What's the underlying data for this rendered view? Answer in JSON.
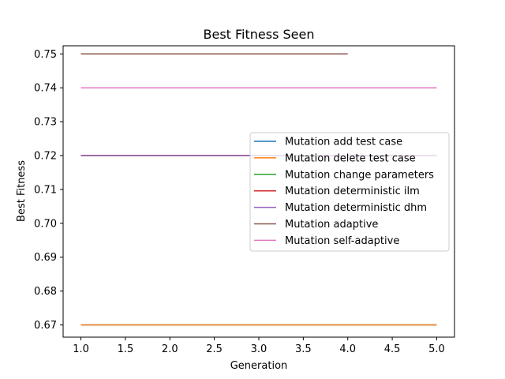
{
  "chart_data": {
    "type": "line",
    "title": "Best Fitness Seen",
    "xlabel": "Generation",
    "ylabel": "Best Fitness",
    "xlim": [
      0.8,
      5.2
    ],
    "ylim": [
      0.6664,
      0.7524
    ],
    "xticks": [
      1.0,
      1.5,
      2.0,
      2.5,
      3.0,
      3.5,
      4.0,
      4.5,
      5.0
    ],
    "xtick_labels": [
      "1.0",
      "1.5",
      "2.0",
      "2.5",
      "3.0",
      "3.5",
      "4.0",
      "4.5",
      "5.0"
    ],
    "yticks": [
      0.67,
      0.68,
      0.69,
      0.7,
      0.71,
      0.72,
      0.73,
      0.74,
      0.75
    ],
    "ytick_labels": [
      "0.67",
      "0.68",
      "0.69",
      "0.70",
      "0.71",
      "0.72",
      "0.73",
      "0.74",
      "0.75"
    ],
    "grid": false,
    "legend_position": "center-right",
    "series": [
      {
        "name": "Mutation add test case",
        "color": "#1f77b4",
        "x": [
          1,
          2,
          3,
          4,
          5
        ],
        "y": [
          0.67,
          0.67,
          0.67,
          0.67,
          0.67
        ]
      },
      {
        "name": "Mutation delete test case",
        "color": "#ff7f0e",
        "x": [
          1,
          2,
          3,
          4,
          5
        ],
        "y": [
          0.67,
          0.67,
          0.67,
          0.67,
          0.67
        ]
      },
      {
        "name": "Mutation change parameters",
        "color": "#2ca02c",
        "x": [
          1,
          2,
          3,
          4,
          5
        ],
        "y": [
          0.72,
          0.72,
          0.72,
          0.72,
          0.72
        ]
      },
      {
        "name": "Mutation deterministic ilm",
        "color": "#d62728",
        "x": [
          1,
          2,
          3,
          4,
          5
        ],
        "y": [
          0.72,
          0.72,
          0.72,
          0.72,
          0.72
        ]
      },
      {
        "name": "Mutation deterministic dhm",
        "color": "#9467bd",
        "x": [
          1,
          2,
          3,
          4,
          5
        ],
        "y": [
          0.72,
          0.72,
          0.72,
          0.72,
          0.72
        ]
      },
      {
        "name": "Mutation adaptive",
        "color": "#8c564b",
        "x": [
          1,
          2,
          3,
          4
        ],
        "y": [
          0.75,
          0.75,
          0.75,
          0.75
        ]
      },
      {
        "name": "Mutation self-adaptive",
        "color": "#e377c2",
        "x": [
          1,
          2,
          3,
          4,
          5
        ],
        "y": [
          0.74,
          0.74,
          0.74,
          0.74,
          0.74
        ]
      }
    ]
  }
}
